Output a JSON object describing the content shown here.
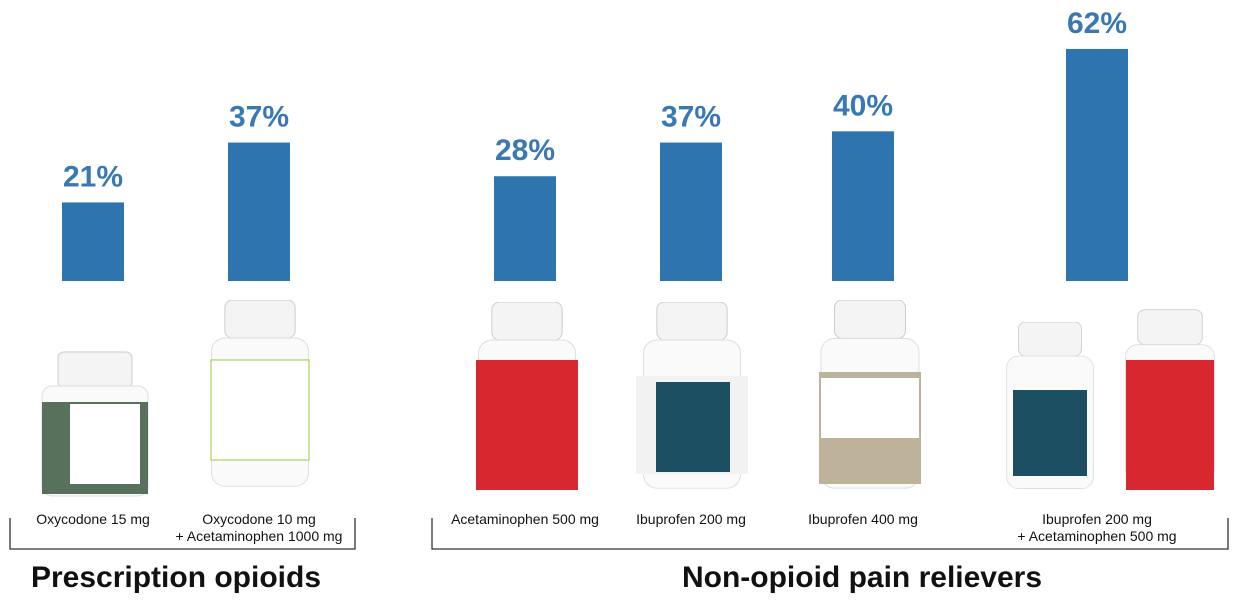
{
  "chart_data": {
    "type": "bar",
    "categories": [
      [
        "Oxycodone 15 mg"
      ],
      [
        "Oxycodone 10 mg",
        "+ Acetaminophen 1000 mg"
      ],
      [
        "Acetaminophen 500 mg"
      ],
      [
        "Ibuprofen 200 mg"
      ],
      [
        "Ibuprofen 400 mg"
      ],
      [
        "Ibuprofen 200 mg",
        "+ Acetaminophen 500 mg"
      ]
    ],
    "values": [
      21,
      37,
      28,
      37,
      40,
      62
    ],
    "value_labels": [
      "21%",
      "37%",
      "28%",
      "37%",
      "40%",
      "62%"
    ],
    "color": "#2e75b0",
    "groups": [
      "Prescription opioids",
      "Non-opioid pain relievers"
    ]
  }
}
